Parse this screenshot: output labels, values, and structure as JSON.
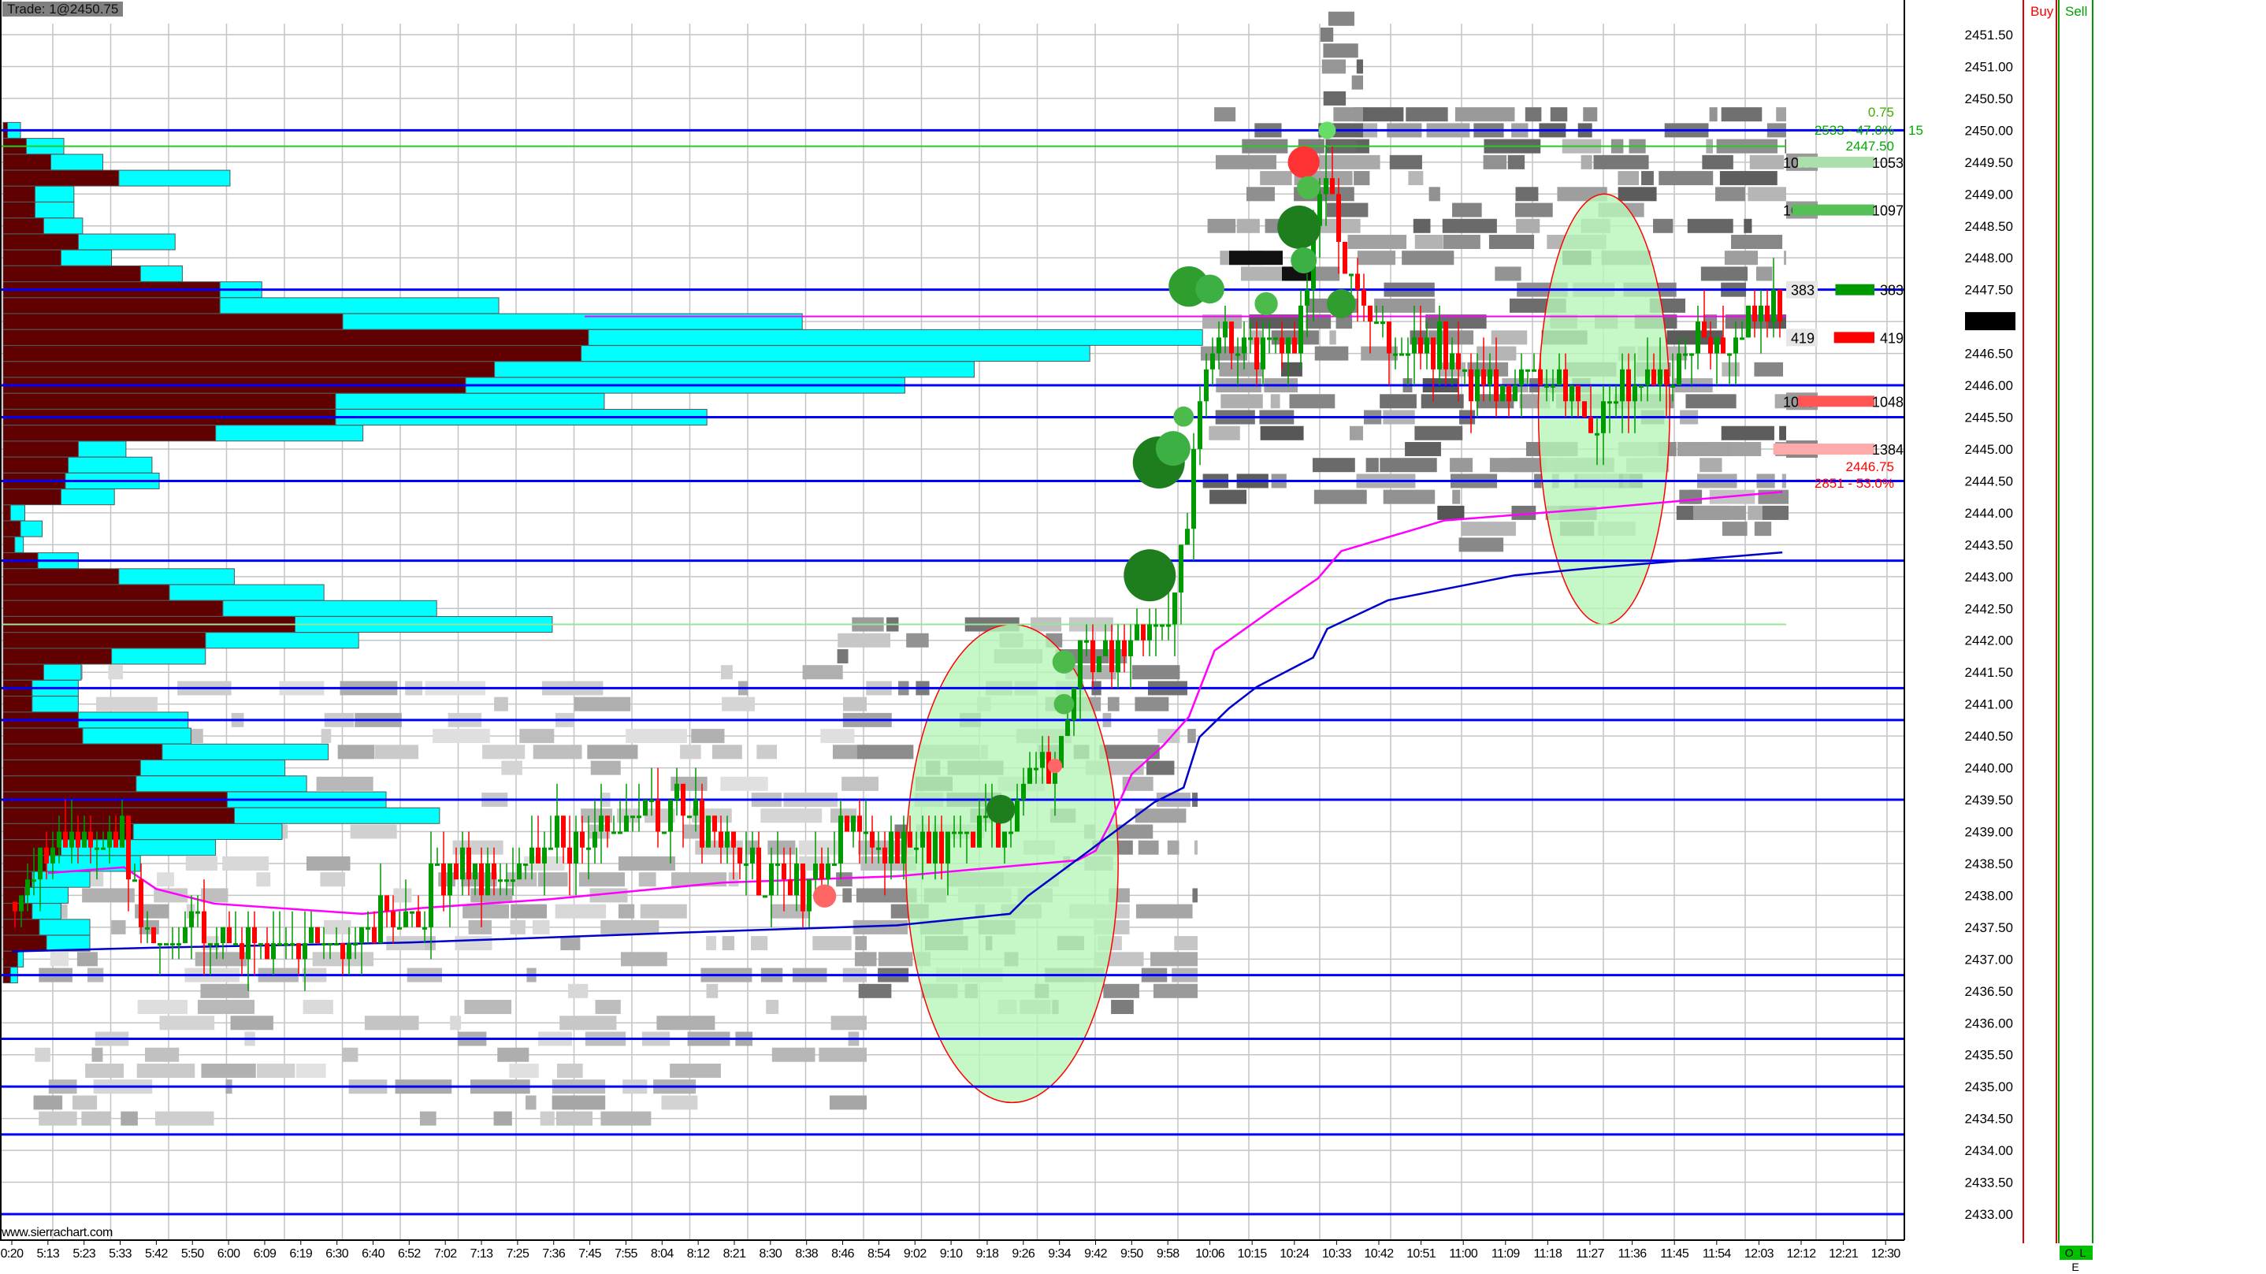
{
  "header": {
    "trade_label": "Trade: 1@2450.75",
    "buy_label": "Buy",
    "sell_label": "Sell",
    "order_status": "O L E",
    "watermark": "www.sierrachart.com"
  },
  "colors": {
    "level_line": "#0000ff",
    "vwap": "#ff00ff",
    "vwap2": "#0000cc",
    "up": "#009900",
    "down": "#ff0000",
    "profile_sell": "#600000",
    "profile_buy": "#00ffff",
    "ellipse_fill": "#b8f5b8",
    "ellipse_border": "#ff0000"
  },
  "chart_data": {
    "type": "candlestick",
    "title": "",
    "grid": true,
    "y_range": [
      2432.75,
      2451.75
    ],
    "y_ticks": [
      "2451.50",
      "2451.00",
      "2450.50",
      "2450.00",
      "2449.50",
      "2449.00",
      "2448.50",
      "2448.00",
      "2447.50",
      "2447.00",
      "2446.50",
      "2446.00",
      "2445.50",
      "2445.00",
      "2444.50",
      "2444.00",
      "2443.50",
      "2443.00",
      "2442.50",
      "2442.00",
      "2441.50",
      "2441.00",
      "2440.50",
      "2440.00",
      "2439.50",
      "2439.00",
      "2438.50",
      "2438.00",
      "2437.50",
      "2437.00",
      "2436.50",
      "2436.00",
      "2435.50",
      "2435.00",
      "2434.50",
      "2434.00",
      "2433.50",
      "2433.00"
    ],
    "current_price": "2447.00",
    "x_ticks": [
      "0:20",
      "5:13",
      "5:23",
      "5:33",
      "5:42",
      "5:50",
      "6:00",
      "6:09",
      "6:19",
      "6:30",
      "6:40",
      "6:52",
      "7:02",
      "7:13",
      "7:25",
      "7:36",
      "7:45",
      "7:55",
      "8:04",
      "8:12",
      "8:21",
      "8:30",
      "8:38",
      "8:46",
      "8:54",
      "9:02",
      "9:10",
      "9:18",
      "9:26",
      "9:34",
      "9:42",
      "9:50",
      "9:58",
      "10:06",
      "10:15",
      "10:24",
      "10:33",
      "10:42",
      "10:51",
      "11:00",
      "11:09",
      "11:18",
      "11:27",
      "11:36",
      "11:45",
      "11:54",
      "12:03",
      "12:12",
      "12:21",
      "12:30"
    ],
    "price_path": [
      {
        "t": "0:20",
        "p": 2437.9
      },
      {
        "t": "5:13",
        "p": 2438.6
      },
      {
        "t": "5:24",
        "p": 2438.9
      },
      {
        "t": "5:34",
        "p": 2439.0
      },
      {
        "t": "5:38",
        "p": 2437.8
      },
      {
        "t": "5:46",
        "p": 2437.2
      },
      {
        "t": "5:56",
        "p": 2437.5
      },
      {
        "t": "6:15",
        "p": 2437.2
      },
      {
        "t": "6:28",
        "p": 2437.3
      },
      {
        "t": "6:41",
        "p": 2437.7
      },
      {
        "t": "6:55",
        "p": 2437.6
      },
      {
        "t": "6:59",
        "p": 2438.3
      },
      {
        "t": "7:16",
        "p": 2438.4
      },
      {
        "t": "7:35",
        "p": 2438.9
      },
      {
        "t": "7:50",
        "p": 2438.9
      },
      {
        "t": "8:08",
        "p": 2439.5
      },
      {
        "t": "8:18",
        "p": 2438.9
      },
      {
        "t": "8:29",
        "p": 2438.2
      },
      {
        "t": "8:39",
        "p": 2438.2
      },
      {
        "t": "8:48",
        "p": 2439.0
      },
      {
        "t": "8:58",
        "p": 2438.8
      },
      {
        "t": "9:10",
        "p": 2438.9
      },
      {
        "t": "9:20",
        "p": 2439.0
      },
      {
        "t": "9:28",
        "p": 2439.8
      },
      {
        "t": "9:35",
        "p": 2440.5
      },
      {
        "t": "9:39",
        "p": 2441.8
      },
      {
        "t": "9:46",
        "p": 2441.8
      },
      {
        "t": "9:52",
        "p": 2442.2
      },
      {
        "t": "9:59",
        "p": 2442.3
      },
      {
        "t": "10:01",
        "p": 2443.5
      },
      {
        "t": "10:04",
        "p": 2446.0
      },
      {
        "t": "10:07",
        "p": 2446.8
      },
      {
        "t": "10:16",
        "p": 2446.6
      },
      {
        "t": "10:25",
        "p": 2446.8
      },
      {
        "t": "10:29",
        "p": 2448.8
      },
      {
        "t": "10:31",
        "p": 2449.5
      },
      {
        "t": "10:34",
        "p": 2447.6
      },
      {
        "t": "10:44",
        "p": 2446.8
      },
      {
        "t": "10:56",
        "p": 2446.6
      },
      {
        "t": "11:02",
        "p": 2445.9
      },
      {
        "t": "11:15",
        "p": 2446.3
      },
      {
        "t": "11:24",
        "p": 2445.8
      },
      {
        "t": "11:27",
        "p": 2445.0
      },
      {
        "t": "11:30",
        "p": 2445.8
      },
      {
        "t": "11:39",
        "p": 2446.1
      },
      {
        "t": "11:49",
        "p": 2446.6
      },
      {
        "t": "11:58",
        "p": 2446.8
      },
      {
        "t": "12:04",
        "p": 2447.2
      },
      {
        "t": "12:08",
        "p": 2447.0
      }
    ],
    "vwap": [
      {
        "t": "5:13",
        "p": 2438.35
      },
      {
        "t": "5:34",
        "p": 2438.44
      },
      {
        "t": "5:42",
        "p": 2438.1
      },
      {
        "t": "5:56",
        "p": 2437.87
      },
      {
        "t": "6:37",
        "p": 2437.71
      },
      {
        "t": "6:55",
        "p": 2437.8
      },
      {
        "t": "7:35",
        "p": 2437.94
      },
      {
        "t": "8:18",
        "p": 2438.2
      },
      {
        "t": "8:58",
        "p": 2438.3
      },
      {
        "t": "9:38",
        "p": 2438.55
      },
      {
        "t": "9:42",
        "p": 2438.7
      },
      {
        "t": "9:45",
        "p": 2439.1
      },
      {
        "t": "9:50",
        "p": 2439.9
      },
      {
        "t": "9:57",
        "p": 2440.35
      },
      {
        "t": "10:02",
        "p": 2440.8
      },
      {
        "t": "10:07",
        "p": 2441.84
      },
      {
        "t": "10:20",
        "p": 2442.52
      },
      {
        "t": "10:29",
        "p": 2442.97
      },
      {
        "t": "10:34",
        "p": 2443.4
      },
      {
        "t": "10:56",
        "p": 2443.88
      },
      {
        "t": "11:27",
        "p": 2444.06
      },
      {
        "t": "12:08",
        "p": 2444.33
      }
    ],
    "vwap2": [
      {
        "t": "0:20",
        "p": 2437.12
      },
      {
        "t": "5:42",
        "p": 2437.18
      },
      {
        "t": "6:52",
        "p": 2437.26
      },
      {
        "t": "8:10",
        "p": 2437.42
      },
      {
        "t": "8:58",
        "p": 2437.53
      },
      {
        "t": "9:23",
        "p": 2437.71
      },
      {
        "t": "9:27",
        "p": 2437.99
      },
      {
        "t": "9:40",
        "p": 2438.67
      },
      {
        "t": "9:55",
        "p": 2439.46
      },
      {
        "t": "10:01",
        "p": 2439.69
      },
      {
        "t": "10:04",
        "p": 2440.48
      },
      {
        "t": "10:10",
        "p": 2440.93
      },
      {
        "t": "10:16",
        "p": 2441.27
      },
      {
        "t": "10:28",
        "p": 2441.73
      },
      {
        "t": "10:31",
        "p": 2442.18
      },
      {
        "t": "10:44",
        "p": 2442.63
      },
      {
        "t": "11:11",
        "p": 2443.02
      },
      {
        "t": "11:27",
        "p": 2443.13
      },
      {
        "t": "12:08",
        "p": 2443.38
      }
    ],
    "levels": [
      2450.0,
      2447.5,
      2446.0,
      2445.5,
      2444.5,
      2443.25,
      2441.25,
      2440.75,
      2439.5,
      2436.75,
      2435.75,
      2435.0,
      2434.25,
      2433.0
    ],
    "thin_levels": [
      {
        "p": 2449.75,
        "color": "#22cc22"
      },
      {
        "p": 2442.25,
        "color": "#99e699"
      },
      {
        "p": 2447.08,
        "color": "#ff00ff"
      }
    ],
    "volume_profile": [
      {
        "p": 2450.0,
        "sell": 3,
        "buy": 12
      },
      {
        "p": 2449.75,
        "sell": 16,
        "buy": 42
      },
      {
        "p": 2449.5,
        "sell": 33,
        "buy": 69
      },
      {
        "p": 2449.25,
        "sell": 80,
        "buy": 157
      },
      {
        "p": 2449.0,
        "sell": 22,
        "buy": 49
      },
      {
        "p": 2448.75,
        "sell": 22,
        "buy": 49
      },
      {
        "p": 2448.5,
        "sell": 28,
        "buy": 55
      },
      {
        "p": 2448.25,
        "sell": 52,
        "buy": 119
      },
      {
        "p": 2448.0,
        "sell": 40,
        "buy": 75
      },
      {
        "p": 2447.75,
        "sell": 95,
        "buy": 124
      },
      {
        "p": 2447.5,
        "sell": 150,
        "buy": 179
      },
      {
        "p": 2447.25,
        "sell": 150,
        "buy": 343
      },
      {
        "p": 2447.0,
        "sell": 235,
        "buy": 553
      },
      {
        "p": 2446.75,
        "sell": 405,
        "buy": 830
      },
      {
        "p": 2446.5,
        "sell": 400,
        "buy": 752
      },
      {
        "p": 2446.25,
        "sell": 340,
        "buy": 672
      },
      {
        "p": 2446.0,
        "sell": 320,
        "buy": 624
      },
      {
        "p": 2445.75,
        "sell": 230,
        "buy": 416
      },
      {
        "p": 2445.5,
        "sell": 230,
        "buy": 487
      },
      {
        "p": 2445.25,
        "sell": 147,
        "buy": 249
      },
      {
        "p": 2445.0,
        "sell": 52,
        "buy": 85
      },
      {
        "p": 2444.75,
        "sell": 45,
        "buy": 103
      },
      {
        "p": 2444.5,
        "sell": 43,
        "buy": 108
      },
      {
        "p": 2444.25,
        "sell": 40,
        "buy": 77
      },
      {
        "p": 2444.0,
        "sell": 5,
        "buy": 15
      },
      {
        "p": 2443.75,
        "sell": 12,
        "buy": 27
      },
      {
        "p": 2443.5,
        "sell": 8,
        "buy": 14
      },
      {
        "p": 2443.25,
        "sell": 24,
        "buy": 52
      },
      {
        "p": 2443.0,
        "sell": 80,
        "buy": 160
      },
      {
        "p": 2442.75,
        "sell": 115,
        "buy": 222
      },
      {
        "p": 2442.5,
        "sell": 152,
        "buy": 300
      },
      {
        "p": 2442.25,
        "sell": 202,
        "buy": 380
      },
      {
        "p": 2442.0,
        "sell": 140,
        "buy": 246
      },
      {
        "p": 2441.75,
        "sell": 75,
        "buy": 140
      },
      {
        "p": 2441.5,
        "sell": 28,
        "buy": 54
      },
      {
        "p": 2441.25,
        "sell": 20,
        "buy": 52
      },
      {
        "p": 2441.0,
        "sell": 20,
        "buy": 52
      },
      {
        "p": 2440.75,
        "sell": 52,
        "buy": 128
      },
      {
        "p": 2440.5,
        "sell": 55,
        "buy": 130
      },
      {
        "p": 2440.25,
        "sell": 110,
        "buy": 225
      },
      {
        "p": 2440.0,
        "sell": 95,
        "buy": 195
      },
      {
        "p": 2439.75,
        "sell": 92,
        "buy": 210
      },
      {
        "p": 2439.5,
        "sell": 155,
        "buy": 265
      },
      {
        "p": 2439.25,
        "sell": 160,
        "buy": 302
      },
      {
        "p": 2439.0,
        "sell": 90,
        "buy": 193
      },
      {
        "p": 2438.75,
        "sell": 40,
        "buy": 147
      },
      {
        "p": 2438.5,
        "sell": 30,
        "buy": 95
      },
      {
        "p": 2438.25,
        "sell": 20,
        "buy": 60
      },
      {
        "p": 2438.0,
        "sell": 15,
        "buy": 45
      },
      {
        "p": 2437.75,
        "sell": 20,
        "buy": 40
      },
      {
        "p": 2437.5,
        "sell": 25,
        "buy": 60
      },
      {
        "p": 2437.25,
        "sell": 30,
        "buy": 60
      },
      {
        "p": 2437.0,
        "sell": 10,
        "buy": 14
      },
      {
        "p": 2436.75,
        "sell": 5,
        "buy": 10
      }
    ],
    "bubbles": [
      {
        "t": "10:02",
        "p": 2447.55,
        "v": 659,
        "color": "#2f9e2f"
      },
      {
        "t": "10:06",
        "p": 2447.51,
        "v": 336,
        "color": "#3cb043"
      },
      {
        "t": "10:18",
        "p": 2447.28,
        "v": 215,
        "color": "#4cbb4c"
      },
      {
        "t": "10:25",
        "p": 2448.48,
        "v": 757,
        "color": "#1e7e1e"
      },
      {
        "t": "10:26",
        "p": 2449.5,
        "v": 407,
        "color": "#ff3333"
      },
      {
        "t": "10:27",
        "p": 2449.1,
        "v": 215,
        "color": "#4cbb4c"
      },
      {
        "t": "10:26",
        "p": 2447.96,
        "v": 272,
        "color": "#3cb043"
      },
      {
        "t": "10:34",
        "p": 2447.28,
        "v": 336,
        "color": "#2f9e2f"
      },
      {
        "t": "9:56",
        "p": 2444.79,
        "v": 1090,
        "color": "#1e7e1e"
      },
      {
        "t": "9:59",
        "p": 2445.01,
        "v": 484,
        "color": "#3cb043"
      },
      {
        "t": "9:54",
        "p": 2443.02,
        "v": 1090,
        "color": "#1e7e1e"
      },
      {
        "t": "10:01",
        "p": 2445.51,
        "v": 165,
        "color": "#4cbb4c"
      },
      {
        "t": "9:35",
        "p": 2441.66,
        "v": 215,
        "color": "#4cbb4c"
      },
      {
        "t": "9:35",
        "p": 2441.0,
        "v": 165,
        "color": "#4cbb4c"
      },
      {
        "t": "9:21",
        "p": 2439.35,
        "v": 336,
        "color": "#1e7e1e"
      },
      {
        "t": "8:42",
        "p": 2437.99,
        "v": 215,
        "color": "#ff6666"
      },
      {
        "t": "9:33",
        "p": 2440.03,
        "v": 84,
        "color": "#ff6666"
      },
      {
        "t": "10:31",
        "p": 2450.0,
        "v": 120,
        "color": "#66dd66"
      }
    ],
    "ellipses": [
      {
        "t0": "9:00",
        "t1": "9:47",
        "p_high": 2442.25,
        "p_low": 2434.75
      },
      {
        "t0": "11:16",
        "t1": "11:44",
        "p_high": 2449.0,
        "p_low": 2442.25
      }
    ],
    "ladder": [
      {
        "p": 2449.5,
        "value": "1053",
        "bar_color": "#addfad",
        "depth": 53,
        "box": "#999999"
      },
      {
        "p": 2448.75,
        "value": "1097",
        "bar_color": "#55c055",
        "depth": 57,
        "box": "#999999"
      },
      {
        "p": 2447.5,
        "value": "383",
        "bar_color": "#009900",
        "depth": 27,
        "box": "#e6e6e6"
      },
      {
        "p": 2446.75,
        "value": "419",
        "bar_color": "#ff0000",
        "depth": 28,
        "box": "#e6e6e6"
      },
      {
        "p": 2445.75,
        "value": "1048",
        "bar_color": "#ff5555",
        "depth": 53,
        "box": "#999999"
      },
      {
        "p": 2445.0,
        "value": "1384",
        "bar_color": "#ffaaaa",
        "depth": 70,
        "box": "#888888"
      }
    ],
    "annotations": {
      "tick_value": "0.75",
      "upper_stat": "2533 - 47.0%",
      "upper_count": "15",
      "upper_price": "2447.50",
      "lower_price": "2446.75",
      "lower_stat": "2851 - 53.0%"
    }
  }
}
